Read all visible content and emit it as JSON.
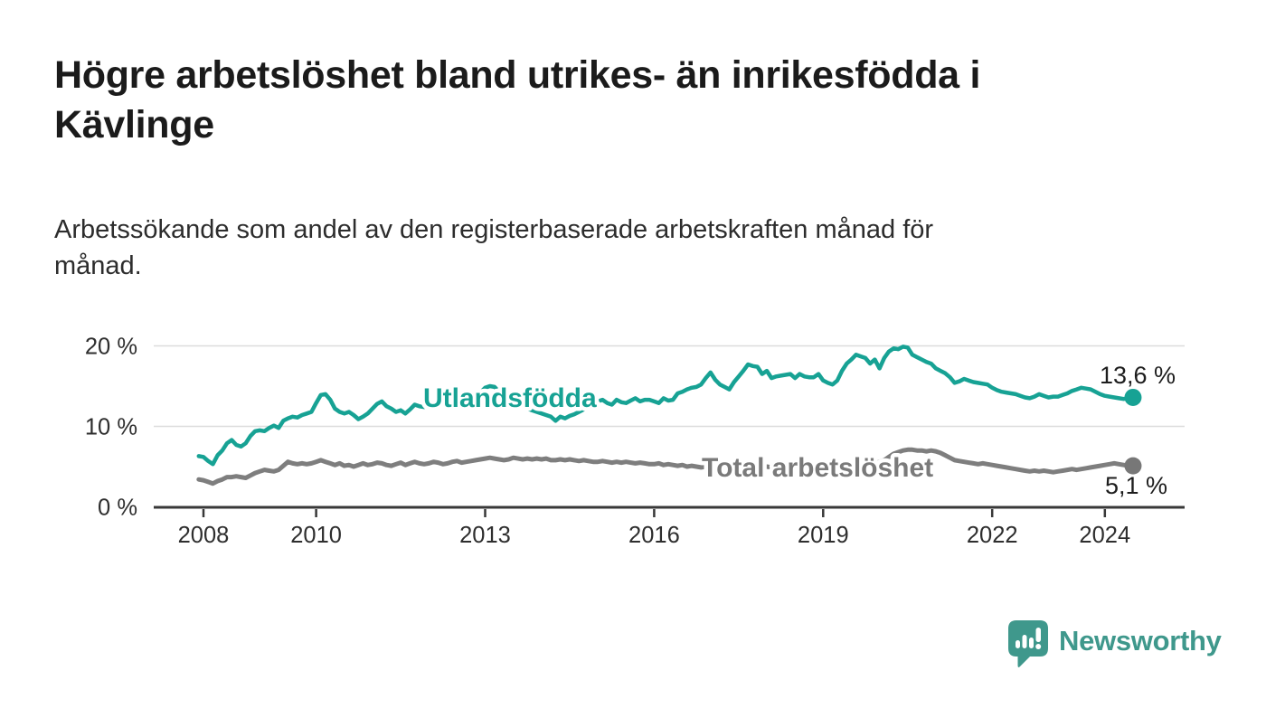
{
  "title_lines": [
    "Högre arbetslöshet bland utrikes- än inrikesfödda i",
    "Kävlinge"
  ],
  "subtitle_lines": [
    "Arbetssökande som andel av den registerbaserade arbetskraften månad för",
    "månad."
  ],
  "branding": {
    "logo_text": "Newsworthy",
    "color": "#3f988c"
  },
  "chart_data": {
    "type": "line",
    "title": "Högre arbetslöshet bland utrikes- än inrikesfödda i Kävlinge",
    "subtitle": "Arbetssökande som andel av den registerbaserade arbetskraften månad för månad.",
    "unit": "%",
    "x_start_year_frac": 2007.9167,
    "x_step": "1 month",
    "x_range": [
      2007.9167,
      2024.5
    ],
    "ylim": [
      0,
      22
    ],
    "grid": "horizontal",
    "legend_position": "inline-labels",
    "style": {
      "grid_color": "#dcdcdc",
      "axis_color": "#383838",
      "tick_text_color": "#2e2e2e",
      "value_text_color": "#1d1d1d"
    },
    "y_axis": {
      "ticks": [
        {
          "value": 0,
          "label": "0 %"
        },
        {
          "value": 10,
          "label": "10 %"
        },
        {
          "value": 20,
          "label": "20 %"
        }
      ]
    },
    "x_axis": {
      "ticks": [
        {
          "year": 2008,
          "label": "2008"
        },
        {
          "year": 2010,
          "label": "2010"
        },
        {
          "year": 2013,
          "label": "2013"
        },
        {
          "year": 2016,
          "label": "2016"
        },
        {
          "year": 2019,
          "label": "2019"
        },
        {
          "year": 2022,
          "label": "2022"
        },
        {
          "year": 2024,
          "label": "2024"
        }
      ]
    },
    "series": [
      {
        "key": "utlandsfodda",
        "name": "Utlandsfödda",
        "color": "#17a294",
        "label_color": "#17a294",
        "dot_color": "#17a294",
        "end_label": "13,6 %",
        "end_value": 13.6,
        "values": [
          6.3,
          6.2,
          5.7,
          5.3,
          6.4,
          7.0,
          7.9,
          8.3,
          7.7,
          7.5,
          7.9,
          8.8,
          9.4,
          9.5,
          9.4,
          9.8,
          10.1,
          9.8,
          10.7,
          11.0,
          11.2,
          11.1,
          11.4,
          11.6,
          11.8,
          12.9,
          13.9,
          14.0,
          13.3,
          12.2,
          11.8,
          11.6,
          11.8,
          11.4,
          10.9,
          11.2,
          11.6,
          12.2,
          12.8,
          13.1,
          12.5,
          12.2,
          11.8,
          12.0,
          11.6,
          12.1,
          12.7,
          12.5,
          12.4,
          12.6,
          12.9,
          12.8,
          12.7,
          12.5,
          12.8,
          13.0,
          12.8,
          13.1,
          13.4,
          13.8,
          14.2,
          14.8,
          15.0,
          14.9,
          14.3,
          13.8,
          13.4,
          13.1,
          12.8,
          12.5,
          12.2,
          12.0,
          11.8,
          11.6,
          11.4,
          11.2,
          10.7,
          11.2,
          11.0,
          11.3,
          11.5,
          11.8,
          12.1,
          12.4,
          12.8,
          13.1,
          13.3,
          12.9,
          12.7,
          13.3,
          13.0,
          12.9,
          13.2,
          13.5,
          13.1,
          13.3,
          13.3,
          13.1,
          12.9,
          13.5,
          13.2,
          13.3,
          14.1,
          14.3,
          14.6,
          14.8,
          14.9,
          15.2,
          16.0,
          16.7,
          15.8,
          15.2,
          14.9,
          14.6,
          15.5,
          16.2,
          16.9,
          17.7,
          17.5,
          17.4,
          16.5,
          16.9,
          16.0,
          16.2,
          16.3,
          16.4,
          16.5,
          16.0,
          16.5,
          16.2,
          16.1,
          16.1,
          16.5,
          15.7,
          15.4,
          15.2,
          15.7,
          16.9,
          17.8,
          18.3,
          18.9,
          18.7,
          18.5,
          17.8,
          18.3,
          17.2,
          18.5,
          19.3,
          19.7,
          19.6,
          19.9,
          19.8,
          18.9,
          18.6,
          18.3,
          18.0,
          17.8,
          17.2,
          16.9,
          16.6,
          16.1,
          15.4,
          15.6,
          15.9,
          15.7,
          15.5,
          15.4,
          15.3,
          15.2,
          14.8,
          14.5,
          14.3,
          14.2,
          14.1,
          14.0,
          13.8,
          13.6,
          13.5,
          13.7,
          14.0,
          13.8,
          13.6,
          13.7,
          13.7,
          13.9,
          14.1,
          14.4,
          14.6,
          14.8,
          14.7,
          14.6,
          14.3,
          14.0,
          13.8,
          13.7,
          13.6,
          13.5,
          13.4,
          13.5,
          13.6
        ]
      },
      {
        "key": "total",
        "name": "Total arbetslöshet",
        "color": "#7e7e7e",
        "label_color": "#7a7a7a",
        "dot_color": "#777777",
        "end_label": "5,1 %",
        "end_value": 5.1,
        "values": [
          3.4,
          3.3,
          3.1,
          2.9,
          3.2,
          3.4,
          3.7,
          3.7,
          3.8,
          3.7,
          3.6,
          3.9,
          4.2,
          4.4,
          4.6,
          4.5,
          4.4,
          4.6,
          5.1,
          5.6,
          5.4,
          5.3,
          5.4,
          5.3,
          5.4,
          5.6,
          5.8,
          5.6,
          5.4,
          5.2,
          5.4,
          5.1,
          5.2,
          5.0,
          5.2,
          5.4,
          5.2,
          5.3,
          5.5,
          5.4,
          5.2,
          5.1,
          5.3,
          5.5,
          5.2,
          5.4,
          5.6,
          5.4,
          5.3,
          5.4,
          5.6,
          5.5,
          5.3,
          5.4,
          5.6,
          5.7,
          5.5,
          5.6,
          5.7,
          5.8,
          5.9,
          6.0,
          6.1,
          6.0,
          5.9,
          5.8,
          5.9,
          6.1,
          6.0,
          5.9,
          6.0,
          5.9,
          6.0,
          5.9,
          6.0,
          5.8,
          5.8,
          5.9,
          5.8,
          5.9,
          5.8,
          5.7,
          5.8,
          5.7,
          5.6,
          5.6,
          5.7,
          5.6,
          5.5,
          5.6,
          5.5,
          5.6,
          5.5,
          5.4,
          5.5,
          5.4,
          5.3,
          5.3,
          5.4,
          5.2,
          5.3,
          5.2,
          5.1,
          5.2,
          5.0,
          5.1,
          5.0,
          4.9,
          5.0,
          5.1,
          5.0,
          4.9,
          5.0,
          4.9,
          4.8,
          4.9,
          4.8,
          4.9,
          5.0,
          4.9,
          5.0,
          5.0,
          4.9,
          4.8,
          4.7,
          4.8,
          4.7,
          4.8,
          4.7,
          4.8,
          4.9,
          4.8,
          4.9,
          5.0,
          4.9,
          4.8,
          4.9,
          5.0,
          5.1,
          5.2,
          5.1,
          5.2,
          5.3,
          5.2,
          5.4,
          5.6,
          5.8,
          6.2,
          6.6,
          6.8,
          7.0,
          7.1,
          7.1,
          7.0,
          7.0,
          6.9,
          7.0,
          6.9,
          6.7,
          6.4,
          6.1,
          5.8,
          5.7,
          5.6,
          5.5,
          5.4,
          5.3,
          5.4,
          5.3,
          5.2,
          5.1,
          5.0,
          4.9,
          4.8,
          4.7,
          4.6,
          4.5,
          4.4,
          4.5,
          4.4,
          4.5,
          4.4,
          4.3,
          4.4,
          4.5,
          4.6,
          4.7,
          4.6,
          4.7,
          4.8,
          4.9,
          5.0,
          5.1,
          5.2,
          5.3,
          5.4,
          5.3,
          5.2,
          5.1,
          5.1
        ]
      }
    ]
  }
}
